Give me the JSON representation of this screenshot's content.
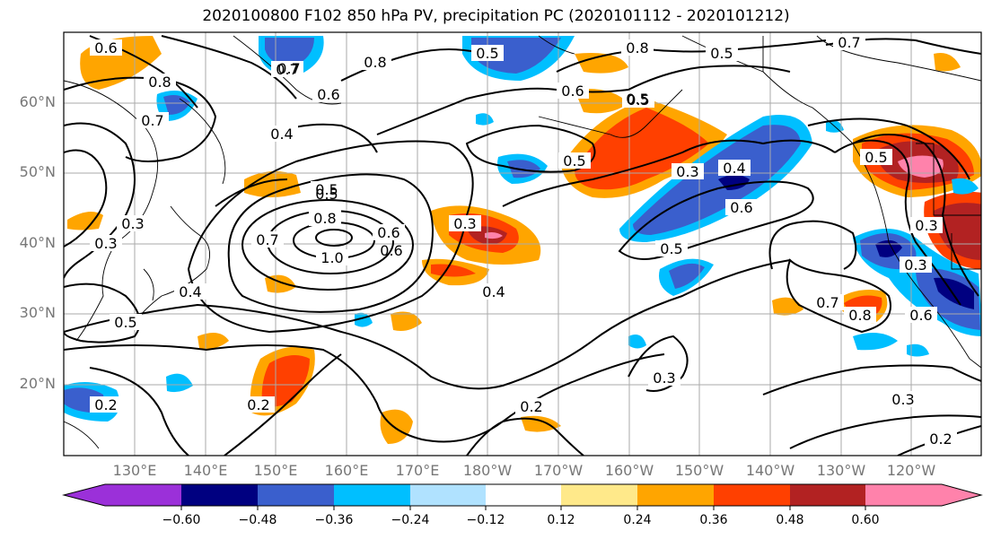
{
  "title": "2020100800 F102 850 hPa PV, precipitation PC (2020101112 - 2020101212)",
  "lat_labels": [
    "60°N",
    "50°N",
    "40°N",
    "30°N",
    "20°N"
  ],
  "lon_labels": [
    "130°E",
    "140°E",
    "150°E",
    "160°E",
    "170°E",
    "180°W",
    "170°W",
    "160°W",
    "150°W",
    "140°W",
    "130°W",
    "120°W"
  ],
  "colorbar": {
    "tick_labels": [
      "−0.60",
      "−0.48",
      "−0.36",
      "−0.24",
      "−0.12",
      "0.12",
      "0.24",
      "0.36",
      "0.48",
      "0.60"
    ],
    "colors": [
      "#9b30d9",
      "#000080",
      "#3a5fcd",
      "#00bfff",
      "#b0e2ff",
      "#ffffff",
      "#ffe98a",
      "#ffa500",
      "#ff4000",
      "#b22222",
      "#ff82ab"
    ]
  },
  "contour_labels": [
    "0.6",
    "0.7",
    "0.8",
    "0.5",
    "0.8",
    "0.5",
    "0.5",
    "0.7",
    "0.8",
    "0.6",
    "0.6",
    "0.5",
    "0.7",
    "0.4",
    "0.5",
    "0.3",
    "0.4",
    "0.3",
    "0.8",
    "0.5",
    "0.7",
    "1.0",
    "0.6",
    "0.3",
    "0.5",
    "0.6",
    "0.3",
    "0.4",
    "0.5",
    "0.4",
    "0.6",
    "0.8",
    "0.7",
    "0.3",
    "0.3",
    "0.6",
    "0.2",
    "0.5",
    "0.3",
    "0.2",
    "0.2",
    "0.3",
    "0.2",
    "0.7",
    "0.5"
  ]
}
